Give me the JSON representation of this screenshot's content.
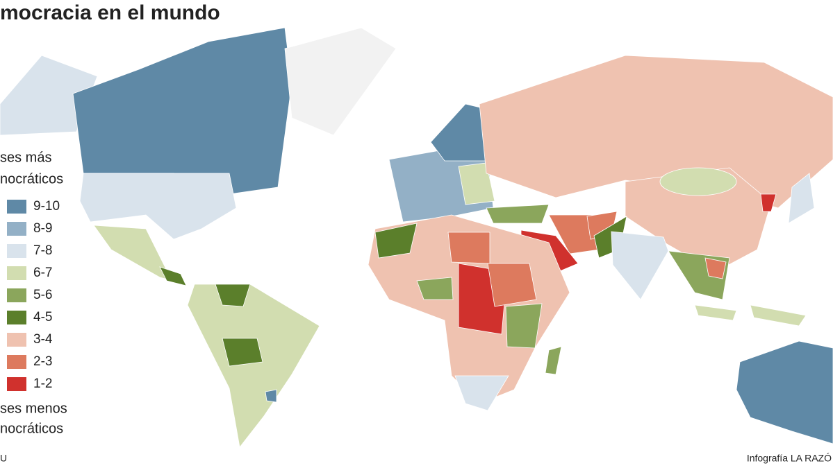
{
  "title": "mocracia en el mundo",
  "legend": {
    "top_caption": [
      "ses más",
      "nocráticos"
    ],
    "items": [
      {
        "label": "9-10",
        "color": "#5f89a6"
      },
      {
        "label": "8-9",
        "color": "#93b0c6"
      },
      {
        "label": "7-8",
        "color": "#d9e3ec"
      },
      {
        "label": "6-7",
        "color": "#d2ddb0"
      },
      {
        "label": "5-6",
        "color": "#8ba65c"
      },
      {
        "label": "4-5",
        "color": "#5b7f2b"
      },
      {
        "label": "3-4",
        "color": "#efc2b0"
      },
      {
        "label": "2-3",
        "color": "#dd7a5e"
      },
      {
        "label": "1-2",
        "color": "#d0312d"
      }
    ],
    "bottom_caption": [
      "ses menos",
      "nocráticos"
    ]
  },
  "source": "U",
  "credit": "Infografía LA RAZÓ"
}
